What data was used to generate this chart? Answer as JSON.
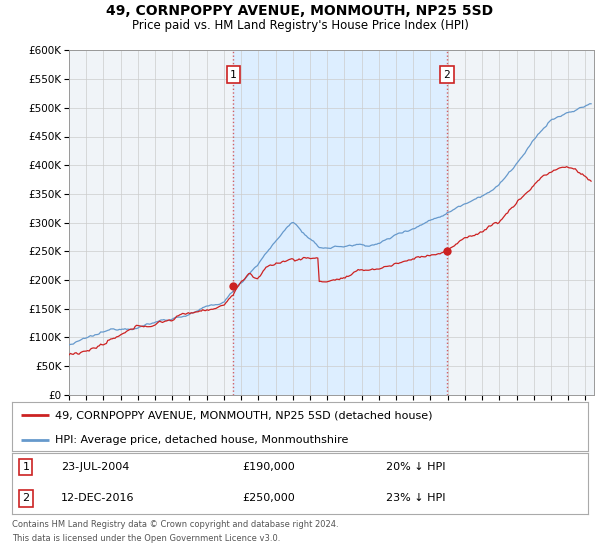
{
  "title": "49, CORNPOPPY AVENUE, MONMOUTH, NP25 5SD",
  "subtitle": "Price paid vs. HM Land Registry's House Price Index (HPI)",
  "ylim": [
    0,
    600000
  ],
  "yticks": [
    0,
    50000,
    100000,
    150000,
    200000,
    250000,
    300000,
    350000,
    400000,
    450000,
    500000,
    550000,
    600000
  ],
  "ytick_labels": [
    "£0",
    "£50K",
    "£100K",
    "£150K",
    "£200K",
    "£250K",
    "£300K",
    "£350K",
    "£400K",
    "£450K",
    "£500K",
    "£550K",
    "£600K"
  ],
  "xlim_start": 1995.0,
  "xlim_end": 2025.5,
  "xtick_years": [
    1995,
    1996,
    1997,
    1998,
    1999,
    2000,
    2001,
    2002,
    2003,
    2004,
    2005,
    2006,
    2007,
    2008,
    2009,
    2010,
    2011,
    2012,
    2013,
    2014,
    2015,
    2016,
    2017,
    2018,
    2019,
    2020,
    2021,
    2022,
    2023,
    2024,
    2025
  ],
  "hpi_color": "#6699cc",
  "price_color": "#cc2222",
  "shade_color": "#ddeeff",
  "grid_color": "#cccccc",
  "marker1_date": 2004.55,
  "marker1_value": 190000,
  "marker2_date": 2016.95,
  "marker2_value": 250000,
  "vline1_date": 2004.55,
  "vline2_date": 2016.95,
  "legend_line1": "49, CORNPOPPY AVENUE, MONMOUTH, NP25 5SD (detached house)",
  "legend_line2": "HPI: Average price, detached house, Monmouthshire",
  "annot1_num": "1",
  "annot1_date": "23-JUL-2004",
  "annot1_price": "£190,000",
  "annot1_hpi": "20% ↓ HPI",
  "annot2_num": "2",
  "annot2_date": "12-DEC-2016",
  "annot2_price": "£250,000",
  "annot2_hpi": "23% ↓ HPI",
  "footer1": "Contains HM Land Registry data © Crown copyright and database right 2024.",
  "footer2": "This data is licensed under the Open Government Licence v3.0.",
  "bg_color": "#ffffff"
}
